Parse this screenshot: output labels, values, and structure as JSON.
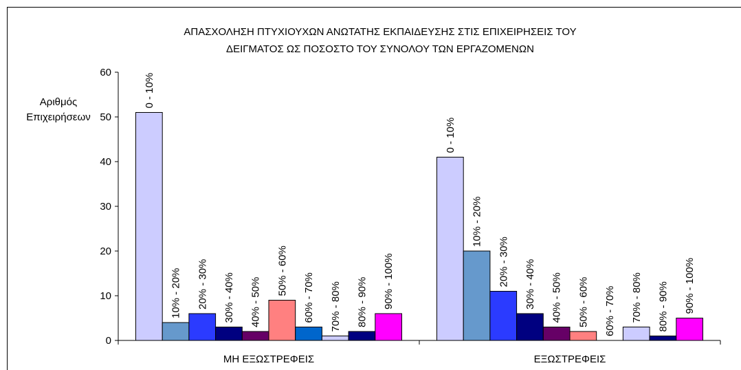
{
  "chart_data": {
    "type": "bar",
    "title": [
      "ΑΠΑΣΧΟΛΗΣΗ ΠΤΥΧΙΟΥΧΩΝ ΑΝΩΤΑΤΗΣ ΕΚΠΑΙΔΕΥΣΗΣ ΣΤΙΣ ΕΠΙΧΕΙΡΗΣΕΙΣ ΤΟΥ",
      "ΔΕΙΓΜΑΤΟΣ ΩΣ ΠΟΣΟΣΤΟ ΤΟΥ ΣΥΝΟΛΟΥ ΤΩΝ ΕΡΓΑΖΟΜΕΝΩΝ"
    ],
    "ylabel": [
      "Αριθμός",
      "Επιχειρήσεων"
    ],
    "categories": [
      "ΜΗ ΕΞΩΣΤΡΕΦΕΙΣ",
      "ΕΞΩΣΤΡΕΦΕΙΣ"
    ],
    "series": [
      {
        "name": "0 - 10%",
        "color": "#ccccff",
        "values": [
          51,
          41
        ]
      },
      {
        "name": "10% - 20%",
        "color": "#6699cc",
        "values": [
          4,
          20
        ]
      },
      {
        "name": "20% - 30%",
        "color": "#2b3bff",
        "values": [
          6,
          11
        ]
      },
      {
        "name": "30% - 40%",
        "color": "#000080",
        "values": [
          3,
          6
        ]
      },
      {
        "name": "40% - 50%",
        "color": "#660066",
        "values": [
          2,
          3
        ]
      },
      {
        "name": "50% - 60%",
        "color": "#ff8080",
        "values": [
          9,
          2
        ]
      },
      {
        "name": "60% - 70%",
        "color": "#0066cc",
        "values": [
          3,
          0
        ]
      },
      {
        "name": "70% - 80%",
        "color": "#ccccff",
        "values": [
          1,
          3
        ]
      },
      {
        "name": "80% - 90%",
        "color": "#000080",
        "values": [
          2,
          1
        ]
      },
      {
        "name": "90% - 100%",
        "color": "#ff00ff",
        "values": [
          6,
          5
        ]
      }
    ],
    "ylim": [
      0,
      60
    ],
    "yticks": [
      0,
      10,
      20,
      30,
      40,
      50,
      60
    ]
  }
}
